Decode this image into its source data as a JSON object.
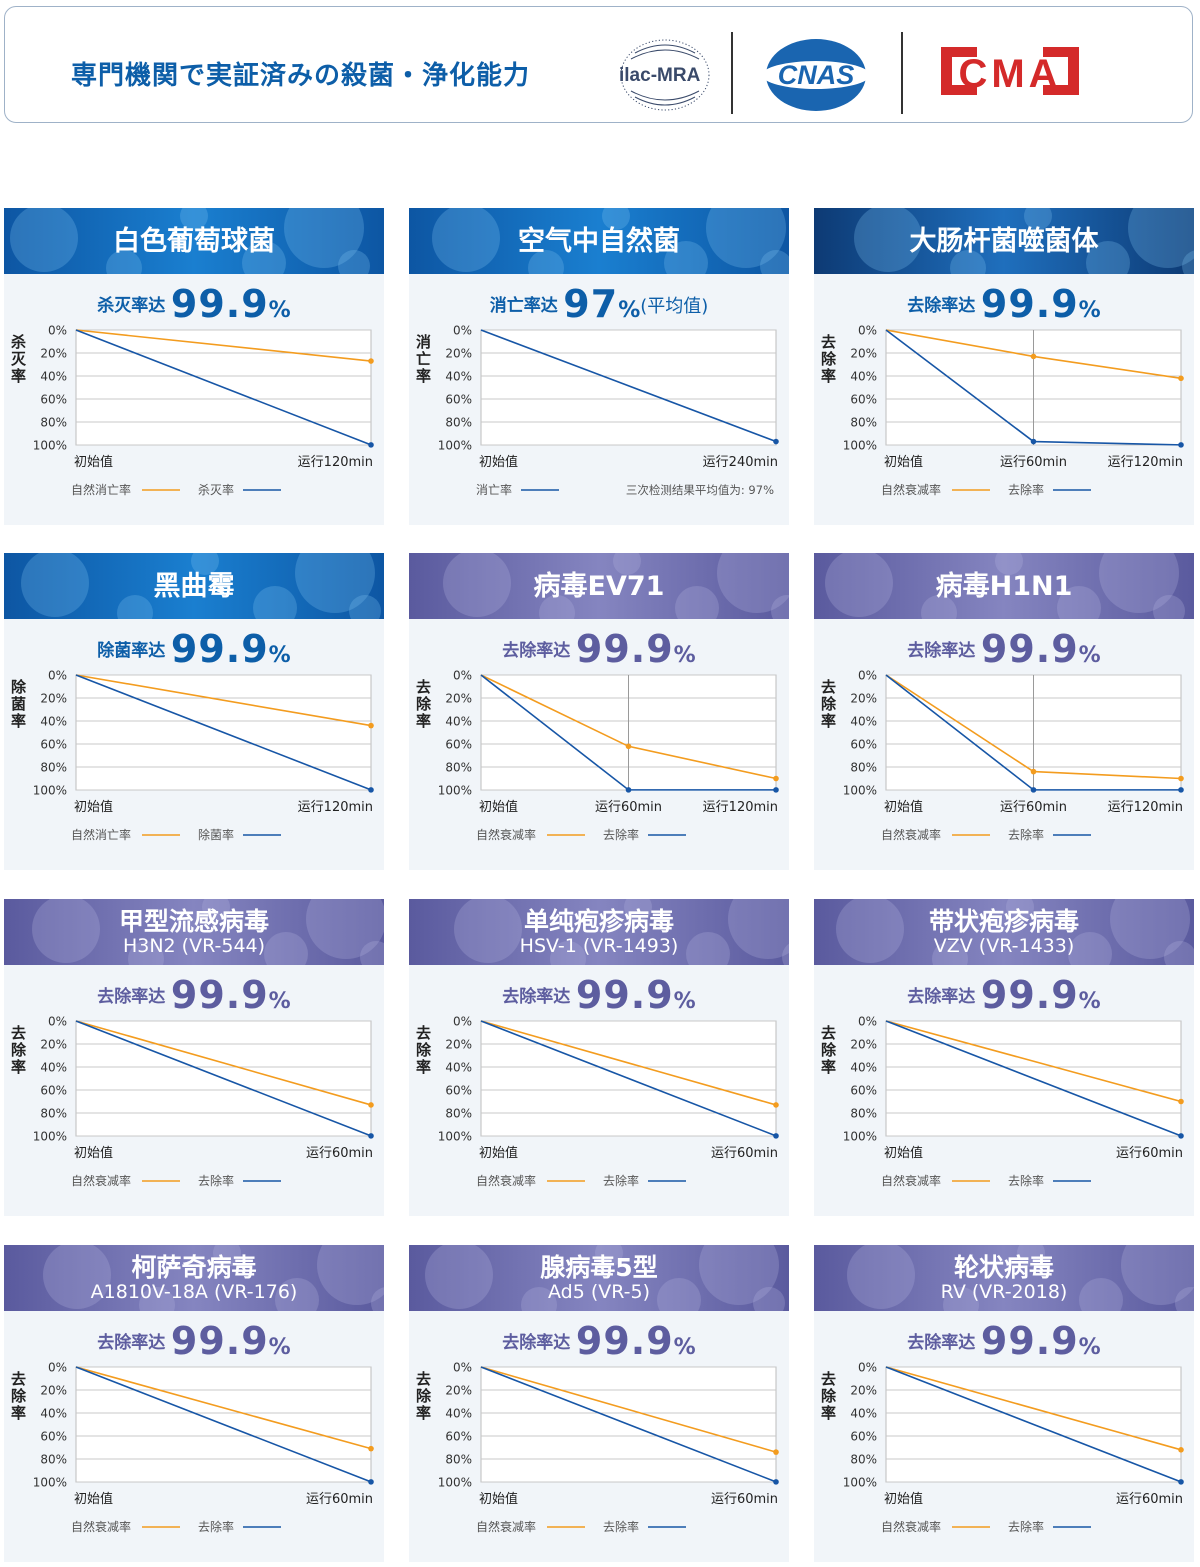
{
  "header": {
    "title": "専門機関で実証済みの殺菌・浄化能力",
    "logos": {
      "ilac": "ilac-MRA",
      "cnas": "CNAS",
      "cma": "CMA"
    }
  },
  "colors": {
    "natural": "#f39c1f",
    "removal": "#1756a6",
    "grid": "#c8c8c8",
    "blue_text": "#0d5ea8",
    "purple_text": "#5d5d9f"
  },
  "chart_data": [
    {
      "type": "line",
      "title": "白色葡萄球菌",
      "subtitle": "",
      "theme": "blue",
      "rate_label": "杀灭率达",
      "rate_value": "99.9",
      "rate_unit": "%",
      "rate_note": "",
      "ylabel": "杀灭率",
      "ylim": [
        0,
        100
      ],
      "yticks": [
        "0%",
        "20%",
        "40%",
        "60%",
        "80%",
        "100%"
      ],
      "categories": [
        "初始值",
        "运行120min"
      ],
      "series": [
        {
          "name": "自然消亡率",
          "color": "orange",
          "values": [
            0,
            27
          ]
        },
        {
          "name": "杀灭率",
          "color": "blue",
          "values": [
            0,
            99.9
          ]
        }
      ],
      "legend_note": ""
    },
    {
      "type": "line",
      "title": "空气中自然菌",
      "subtitle": "",
      "theme": "blue",
      "rate_label": "消亡率达",
      "rate_value": "97",
      "rate_unit": "%",
      "rate_note": "(平均值)",
      "ylabel": "消亡率",
      "ylim": [
        0,
        100
      ],
      "yticks": [
        "0%",
        "20%",
        "40%",
        "60%",
        "80%",
        "100%"
      ],
      "categories": [
        "初始值",
        "运行240min"
      ],
      "series": [
        {
          "name": "消亡率",
          "color": "blue",
          "values": [
            0,
            97
          ]
        }
      ],
      "legend_note": "三次检测结果平均值为: 97%"
    },
    {
      "type": "line",
      "title": "大肠杆菌噬菌体",
      "subtitle": "",
      "theme": "navy",
      "rate_label": "去除率达",
      "rate_value": "99.9",
      "rate_unit": "%",
      "rate_note": "",
      "ylabel": "去除率",
      "ylim": [
        0,
        100
      ],
      "yticks": [
        "0%",
        "20%",
        "40%",
        "60%",
        "80%",
        "100%"
      ],
      "categories": [
        "初始值",
        "运行60min",
        "运行120min"
      ],
      "series": [
        {
          "name": "自然衰减率",
          "color": "orange",
          "values": [
            0,
            23,
            42
          ]
        },
        {
          "name": "去除率",
          "color": "blue",
          "values": [
            0,
            97,
            99.9
          ]
        }
      ],
      "legend_note": ""
    },
    {
      "type": "line",
      "title": "黑曲霉",
      "subtitle": "",
      "theme": "blue",
      "rate_label": "除菌率达",
      "rate_value": "99.9",
      "rate_unit": "%",
      "rate_note": "",
      "ylabel": "除菌率",
      "ylim": [
        0,
        100
      ],
      "yticks": [
        "0%",
        "20%",
        "40%",
        "60%",
        "80%",
        "100%"
      ],
      "categories": [
        "初始值",
        "运行120min"
      ],
      "series": [
        {
          "name": "自然消亡率",
          "color": "orange",
          "values": [
            0,
            44
          ]
        },
        {
          "name": "除菌率",
          "color": "blue",
          "values": [
            0,
            99.9
          ]
        }
      ],
      "legend_note": ""
    },
    {
      "type": "line",
      "title": "病毒EV71",
      "subtitle": "",
      "theme": "purple",
      "rate_label": "去除率达",
      "rate_value": "99.9",
      "rate_unit": "%",
      "rate_note": "",
      "ylabel": "去除率",
      "ylim": [
        0,
        100
      ],
      "yticks": [
        "0%",
        "20%",
        "40%",
        "60%",
        "80%",
        "100%"
      ],
      "categories": [
        "初始值",
        "运行60min",
        "运行120min"
      ],
      "series": [
        {
          "name": "自然衰减率",
          "color": "orange",
          "values": [
            0,
            62,
            90
          ]
        },
        {
          "name": "去除率",
          "color": "blue",
          "values": [
            0,
            99.9,
            99.9
          ]
        }
      ],
      "legend_note": ""
    },
    {
      "type": "line",
      "title": "病毒H1N1",
      "subtitle": "",
      "theme": "purple",
      "rate_label": "去除率达",
      "rate_value": "99.9",
      "rate_unit": "%",
      "rate_note": "",
      "ylabel": "去除率",
      "ylim": [
        0,
        100
      ],
      "yticks": [
        "0%",
        "20%",
        "40%",
        "60%",
        "80%",
        "100%"
      ],
      "categories": [
        "初始值",
        "运行60min",
        "运行120min"
      ],
      "series": [
        {
          "name": "自然衰减率",
          "color": "orange",
          "values": [
            0,
            84,
            90
          ]
        },
        {
          "name": "去除率",
          "color": "blue",
          "values": [
            0,
            99.9,
            99.9
          ]
        }
      ],
      "legend_note": ""
    },
    {
      "type": "line",
      "title": "甲型流感病毒",
      "subtitle": "H3N2 (VR-544)",
      "theme": "purple",
      "rate_label": "去除率达",
      "rate_value": "99.9",
      "rate_unit": "%",
      "rate_note": "",
      "ylabel": "去除率",
      "ylim": [
        0,
        100
      ],
      "yticks": [
        "0%",
        "20%",
        "40%",
        "60%",
        "80%",
        "100%"
      ],
      "categories": [
        "初始值",
        "运行60min"
      ],
      "series": [
        {
          "name": "自然衰减率",
          "color": "orange",
          "values": [
            0,
            73
          ]
        },
        {
          "name": "去除率",
          "color": "blue",
          "values": [
            0,
            99.9
          ]
        }
      ],
      "legend_note": ""
    },
    {
      "type": "line",
      "title": "单纯疱疹病毒",
      "subtitle": "HSV-1 (VR-1493)",
      "theme": "purple",
      "rate_label": "去除率达",
      "rate_value": "99.9",
      "rate_unit": "%",
      "rate_note": "",
      "ylabel": "去除率",
      "ylim": [
        0,
        100
      ],
      "yticks": [
        "0%",
        "20%",
        "40%",
        "60%",
        "80%",
        "100%"
      ],
      "categories": [
        "初始值",
        "运行60min"
      ],
      "series": [
        {
          "name": "自然衰减率",
          "color": "orange",
          "values": [
            0,
            73
          ]
        },
        {
          "name": "去除率",
          "color": "blue",
          "values": [
            0,
            99.9
          ]
        }
      ],
      "legend_note": ""
    },
    {
      "type": "line",
      "title": "带状疱疹病毒",
      "subtitle": "VZV (VR-1433)",
      "theme": "purple",
      "rate_label": "去除率达",
      "rate_value": "99.9",
      "rate_unit": "%",
      "rate_note": "",
      "ylabel": "去除率",
      "ylim": [
        0,
        100
      ],
      "yticks": [
        "0%",
        "20%",
        "40%",
        "60%",
        "80%",
        "100%"
      ],
      "categories": [
        "初始值",
        "运行60min"
      ],
      "series": [
        {
          "name": "自然衰减率",
          "color": "orange",
          "values": [
            0,
            70
          ]
        },
        {
          "name": "去除率",
          "color": "blue",
          "values": [
            0,
            99.9
          ]
        }
      ],
      "legend_note": ""
    },
    {
      "type": "line",
      "title": "柯萨奇病毒",
      "subtitle": "A1810V-18A (VR-176)",
      "theme": "purple",
      "rate_label": "去除率达",
      "rate_value": "99.9",
      "rate_unit": "%",
      "rate_note": "",
      "ylabel": "去除率",
      "ylim": [
        0,
        100
      ],
      "yticks": [
        "0%",
        "20%",
        "40%",
        "60%",
        "80%",
        "100%"
      ],
      "categories": [
        "初始值",
        "运行60min"
      ],
      "series": [
        {
          "name": "自然衰减率",
          "color": "orange",
          "values": [
            0,
            71
          ]
        },
        {
          "name": "去除率",
          "color": "blue",
          "values": [
            0,
            99.9
          ]
        }
      ],
      "legend_note": ""
    },
    {
      "type": "line",
      "title": "腺病毒5型",
      "subtitle": "Ad5 (VR-5)",
      "theme": "purple",
      "rate_label": "去除率达",
      "rate_value": "99.9",
      "rate_unit": "%",
      "rate_note": "",
      "ylabel": "去除率",
      "ylim": [
        0,
        100
      ],
      "yticks": [
        "0%",
        "20%",
        "40%",
        "60%",
        "80%",
        "100%"
      ],
      "categories": [
        "初始值",
        "运行60min"
      ],
      "series": [
        {
          "name": "自然衰减率",
          "color": "orange",
          "values": [
            0,
            74
          ]
        },
        {
          "name": "去除率",
          "color": "blue",
          "values": [
            0,
            99.9
          ]
        }
      ],
      "legend_note": ""
    },
    {
      "type": "line",
      "title": "轮状病毒",
      "subtitle": "RV (VR-2018)",
      "theme": "purple",
      "rate_label": "去除率达",
      "rate_value": "99.9",
      "rate_unit": "%",
      "rate_note": "",
      "ylabel": "去除率",
      "ylim": [
        0,
        100
      ],
      "yticks": [
        "0%",
        "20%",
        "40%",
        "60%",
        "80%",
        "100%"
      ],
      "categories": [
        "初始值",
        "运行60min"
      ],
      "series": [
        {
          "name": "自然衰减率",
          "color": "orange",
          "values": [
            0,
            72
          ]
        },
        {
          "name": "去除率",
          "color": "blue",
          "values": [
            0,
            99.9
          ]
        }
      ],
      "legend_note": ""
    }
  ]
}
